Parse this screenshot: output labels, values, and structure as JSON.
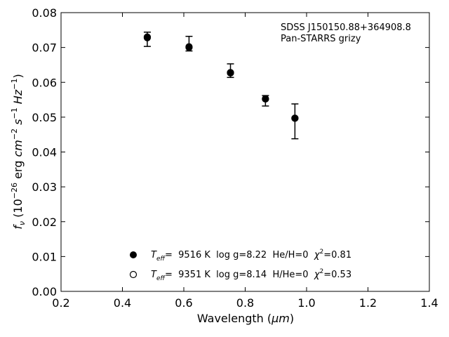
{
  "chart_data": {
    "type": "scatter",
    "annotation_lines": [
      "SDSS J150150.88+364908.8",
      "Pan-STARRS grizy"
    ],
    "xlabel_prefix": "Wavelength (",
    "xlabel_unit": "μm",
    "xlabel_suffix": ")",
    "ylabel": {
      "base": "f",
      "sub": "ν",
      "open": " (10",
      "exp1": "−26",
      "erg": " erg ",
      "cm": "cm",
      "exp2": "−2",
      "s": "s",
      "exp3": "−1",
      "hz": "Hz",
      "exp4": "−1",
      "close": ")"
    },
    "xlim": [
      0.2,
      1.4
    ],
    "ylim": [
      0.0,
      0.08
    ],
    "xticks": [
      "0.2",
      "0.4",
      "0.6",
      "0.8",
      "1.0",
      "1.2",
      "1.4"
    ],
    "yticks": [
      "0.00",
      "0.01",
      "0.02",
      "0.03",
      "0.04",
      "0.05",
      "0.06",
      "0.07",
      "0.08"
    ],
    "observed": {
      "x": [
        0.481,
        0.617,
        0.752,
        0.866,
        0.962
      ],
      "y": [
        0.0734,
        0.0703,
        0.0633,
        0.0554,
        0.0503
      ],
      "yerr_low": [
        0.0031,
        0.0013,
        0.0019,
        0.0022,
        0.0065
      ],
      "yerr_high": [
        0.001,
        0.0029,
        0.002,
        0.0008,
        0.0035
      ]
    },
    "series": [
      {
        "marker": "filled",
        "name_teff": "T",
        "name_teff_sub": "eff",
        "name_text": "=  9516 K  log g=8.22  He/H=0  ",
        "name_chi": "χ",
        "name_chi_sup": "2",
        "name_chi_val": "=0.81",
        "x": [
          0.481,
          0.617,
          0.752,
          0.866,
          0.962
        ],
        "y": [
          0.0728,
          0.07,
          0.0627,
          0.0552,
          0.0497
        ]
      },
      {
        "marker": "open",
        "name_teff": "T",
        "name_teff_sub": "eff",
        "name_text": "=  9351 K  log g=8.14  H/He=0  ",
        "name_chi": "χ",
        "name_chi_sup": "2",
        "name_chi_val": "=0.53",
        "x": [
          0.481,
          0.617,
          0.752,
          0.866,
          0.962
        ],
        "y": [
          0.073,
          0.0702,
          0.0628,
          0.0553,
          0.0497
        ]
      }
    ],
    "grid": false,
    "legend_position": "lower-center"
  }
}
